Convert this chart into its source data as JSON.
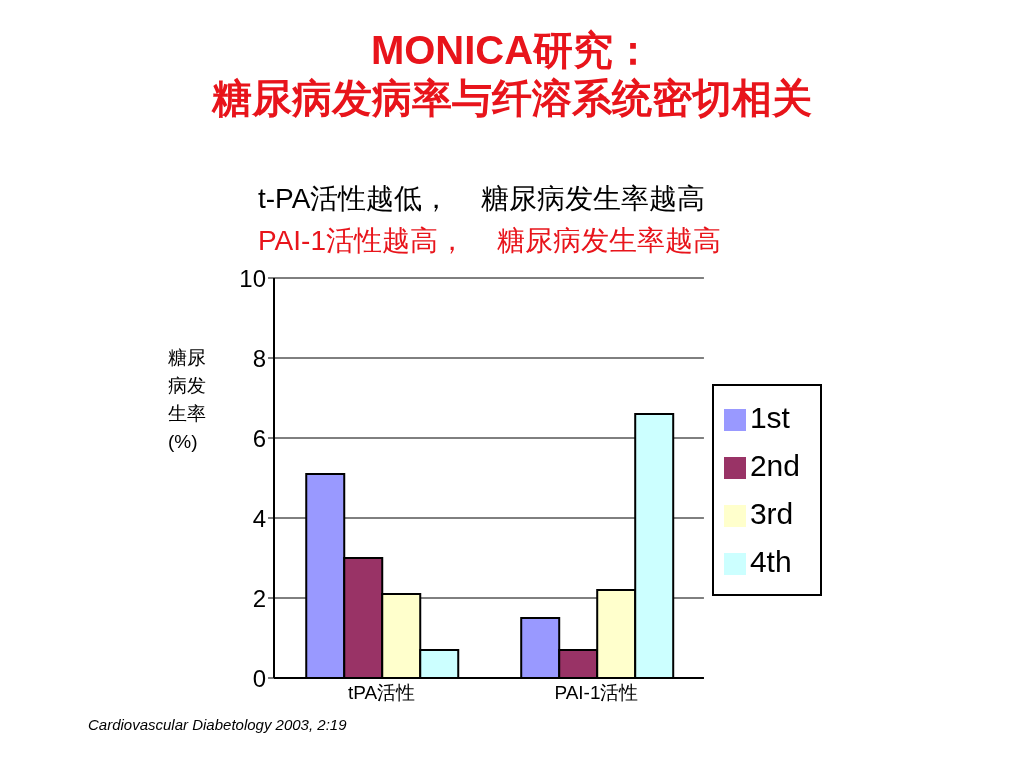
{
  "chart_data": {
    "type": "bar",
    "title": "MONICA研究：",
    "subtitle": "糖尿病发病率与纤溶系统密切相关",
    "ylabel": "糖尿病发生率(%)",
    "categories": [
      "tPA活性",
      "PAI-1活性"
    ],
    "series": [
      {
        "name": "1st",
        "color": "#9999ff",
        "values": [
          5.1,
          1.5
        ]
      },
      {
        "name": "2nd",
        "color": "#993366",
        "values": [
          3.0,
          0.7
        ]
      },
      {
        "name": "3rd",
        "color": "#ffffcc",
        "values": [
          2.1,
          2.2
        ]
      },
      {
        "name": "4th",
        "color": "#ccffff",
        "values": [
          0.7,
          6.6
        ]
      }
    ],
    "ylim": [
      0,
      10
    ],
    "yticks": [
      0,
      2,
      4,
      6,
      8,
      10
    ],
    "grid": "y",
    "legend": "right",
    "annotations": [
      "t-PA活性越低，    糖尿病发生率越高",
      "PAI-1活性越高，    糖尿病发生率越高",
      "Cardiovascular Diabetology 2003, 2:19"
    ]
  }
}
